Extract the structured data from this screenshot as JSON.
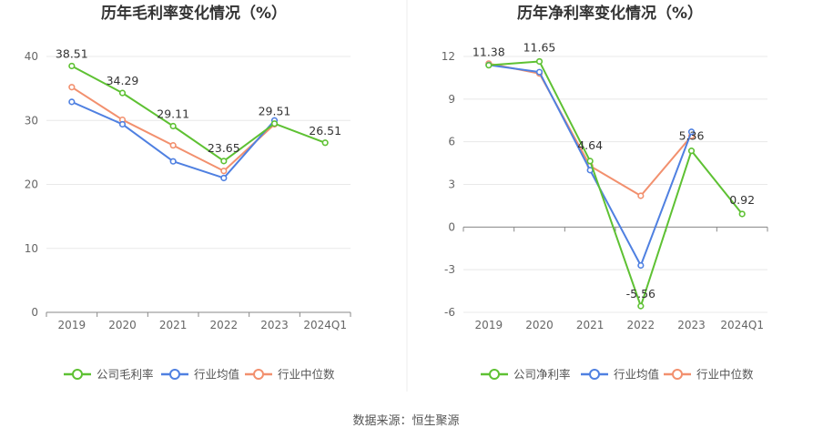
{
  "source": "数据来源：恒生聚源",
  "colors": {
    "company": "#5ec133",
    "industry_avg": "#4f80e1",
    "industry_median": "#f2906e"
  },
  "chart_data": [
    {
      "type": "line",
      "title": "历年毛利率变化情况（%）",
      "categories": [
        "2019",
        "2020",
        "2021",
        "2022",
        "2023",
        "2024Q1"
      ],
      "ylim": [
        0,
        40
      ],
      "yticks": [
        0,
        10,
        20,
        30,
        40
      ],
      "ytick_labels": [
        "0",
        "10",
        "20",
        "30",
        "40"
      ],
      "grid": true,
      "legend_position": "bottom",
      "series": [
        {
          "name": "公司毛利率",
          "key": "company",
          "values": [
            38.51,
            34.29,
            29.11,
            23.65,
            29.51,
            26.51
          ],
          "labels": [
            "38.51",
            "34.29",
            "29.11",
            "23.65",
            "29.51",
            "26.51"
          ]
        },
        {
          "name": "行业均值",
          "key": "industry_avg",
          "values": [
            32.9,
            29.4,
            23.6,
            21.0,
            30.0,
            null
          ]
        },
        {
          "name": "行业中位数",
          "key": "industry_median",
          "values": [
            35.2,
            30.1,
            26.1,
            22.1,
            29.4,
            null
          ]
        }
      ]
    },
    {
      "type": "line",
      "title": "历年净利率变化情况（%）",
      "categories": [
        "2019",
        "2020",
        "2021",
        "2022",
        "2023",
        "2024Q1"
      ],
      "ylim": [
        -6,
        12
      ],
      "yticks": [
        -6,
        -3,
        0,
        3,
        6,
        9,
        12
      ],
      "ytick_labels": [
        "-6",
        "-3",
        "0",
        "3",
        "6",
        "9",
        "12"
      ],
      "grid": true,
      "legend_position": "bottom",
      "series": [
        {
          "name": "公司净利率",
          "key": "company",
          "values": [
            11.38,
            11.65,
            4.64,
            -5.56,
            5.36,
            0.92
          ],
          "labels": [
            "11.38",
            "11.65",
            "4.64",
            "-5.56",
            "5.36",
            "0.92"
          ]
        },
        {
          "name": "行业均值",
          "key": "industry_avg",
          "values": [
            11.4,
            10.9,
            4.0,
            -2.7,
            6.7,
            null
          ]
        },
        {
          "name": "行业中位数",
          "key": "industry_median",
          "values": [
            11.5,
            10.8,
            4.3,
            2.2,
            6.4,
            null
          ]
        }
      ]
    }
  ]
}
